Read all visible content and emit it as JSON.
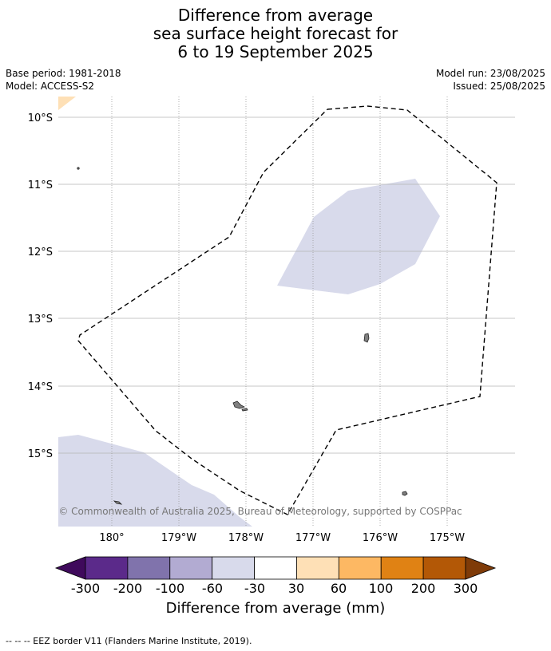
{
  "title": {
    "line1": "Difference from average",
    "line2": "sea surface height forecast for",
    "line3": "6 to 19 September 2025"
  },
  "meta": {
    "base_period": "Base period: 1981-2018",
    "model": "Model: ACCESS-S2",
    "model_run": "Model run: 23/08/2025",
    "issued": "Issued: 25/08/2025"
  },
  "map": {
    "lat_labels": [
      "10°S",
      "11°S",
      "12°S",
      "13°S",
      "14°S",
      "15°S"
    ],
    "lon_labels": [
      "180°",
      "179°W",
      "178°W",
      "177°W",
      "176°W",
      "175°W"
    ],
    "copyright": "© Commonwealth of Australia 2025, Bureau of Meteorology, supported by COSPPac",
    "lat_range": [
      -16.1,
      -9.7
    ],
    "lon_range": [
      179.2,
      -174.0
    ],
    "land_color": "#808080",
    "grid": true
  },
  "colorbar": {
    "title": "Difference from average (mm)",
    "labels": [
      "-300",
      "-200",
      "-100",
      "-60",
      "-30",
      "30",
      "60",
      "100",
      "200",
      "300"
    ],
    "colors": [
      "#3f0a5c",
      "#5b2a8a",
      "#8073ac",
      "#b2abd2",
      "#d8daeb",
      "#ffffff",
      "#fee0b6",
      "#fdb863",
      "#e08214",
      "#b35806",
      "#7f3b08"
    ]
  },
  "legend": {
    "eez": "--  --  -- EEZ border V11 (Flanders Marine Institute, 2019)."
  }
}
